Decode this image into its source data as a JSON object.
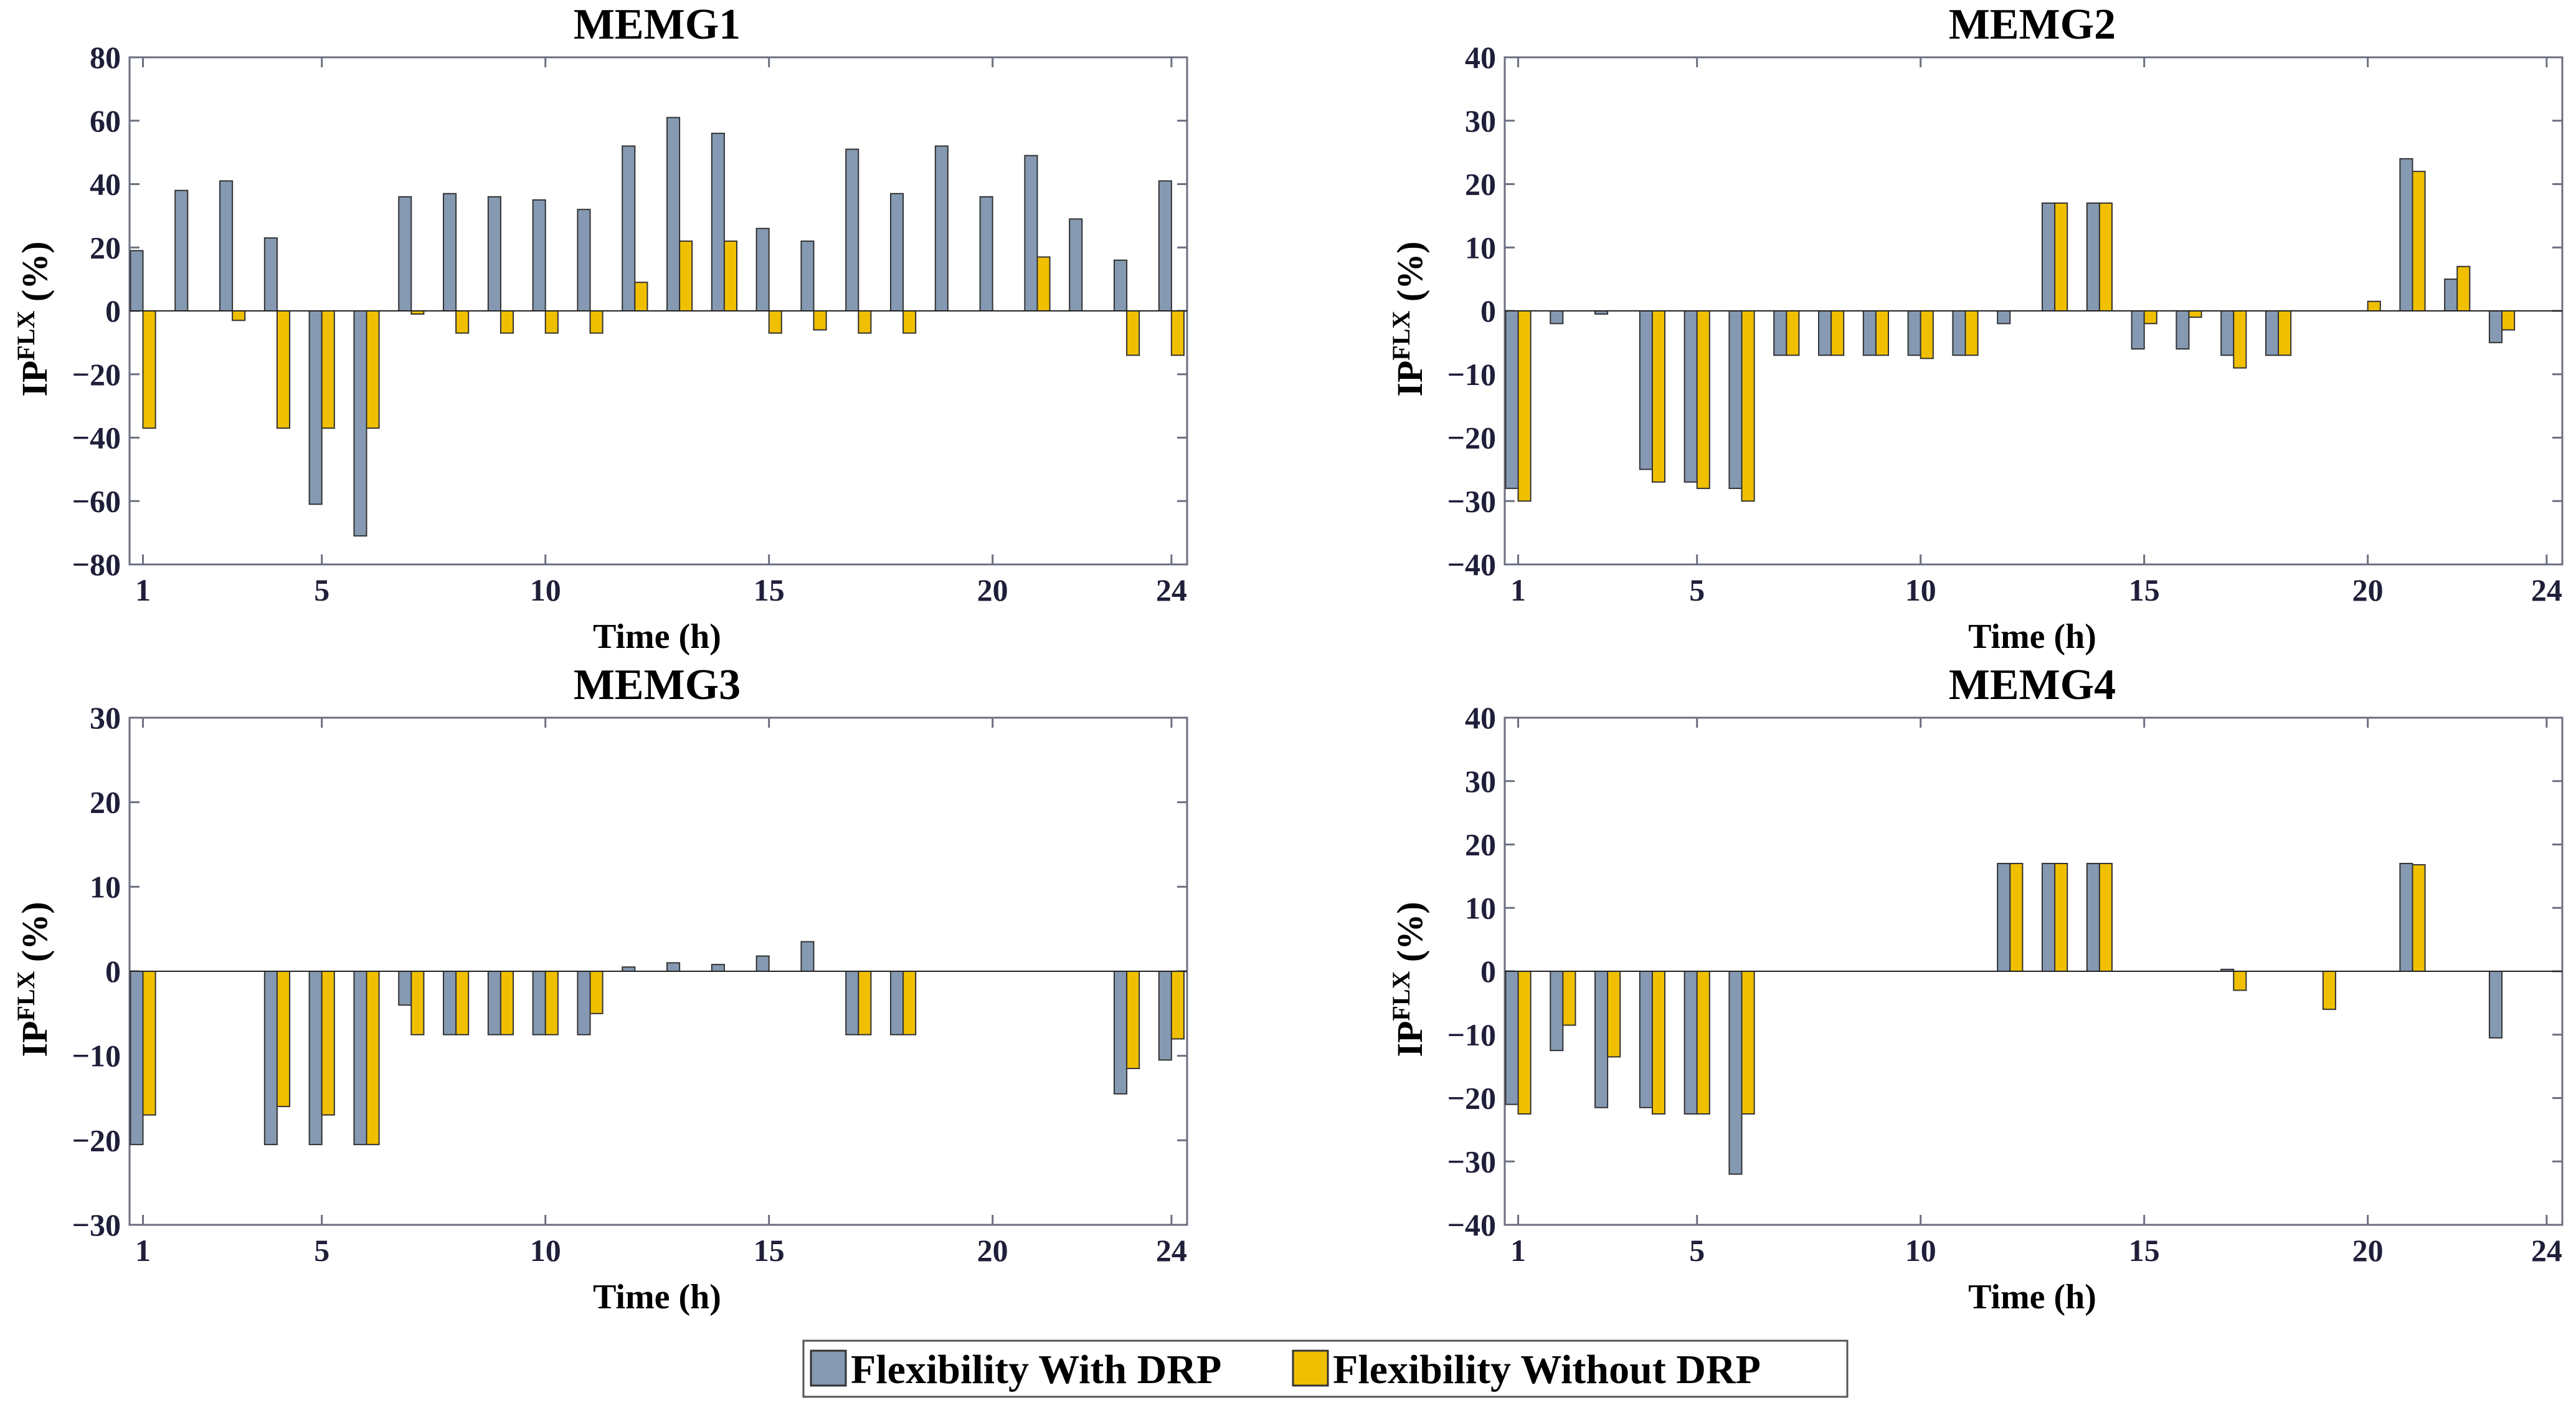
{
  "colors": {
    "with_drp": "#8599b2",
    "without_drp": "#f0c000",
    "bar_edge": "#333333",
    "axis": "#6b6f80"
  },
  "legend": {
    "with_label": "Flexibility With DRP",
    "without_label": "Flexibility Without DRP"
  },
  "chart_data": [
    {
      "type": "bar",
      "title": "MEMG1",
      "xlabel": "Time (h)",
      "ylabel_main": "IP",
      "ylabel_sup": "FLX",
      "ylabel_unit": " (%)",
      "xticks": [
        1,
        5,
        10,
        15,
        20,
        24
      ],
      "ylim": [
        -80,
        80
      ],
      "yticks": [
        -80,
        -60,
        -40,
        -20,
        0,
        20,
        40,
        60,
        80
      ],
      "categories": [
        1,
        2,
        3,
        4,
        5,
        6,
        7,
        8,
        9,
        10,
        11,
        12,
        13,
        14,
        15,
        16,
        17,
        18,
        19,
        20,
        21,
        22,
        23,
        24
      ],
      "series": [
        {
          "name": "Flexibility With DRP",
          "values": [
            19,
            38,
            41,
            23,
            -61,
            -71,
            36,
            37,
            36,
            35,
            32,
            52,
            61,
            56,
            26,
            22,
            51,
            37,
            52,
            36,
            49,
            29,
            16,
            41
          ]
        },
        {
          "name": "Flexibility Without DRP",
          "values": [
            -37,
            0,
            -3,
            -37,
            -37,
            -37,
            -1,
            -7,
            -7,
            -7,
            -7,
            9,
            22,
            22,
            -7,
            -6,
            -7,
            -7,
            0,
            0,
            17,
            0,
            -14,
            -14
          ]
        }
      ]
    },
    {
      "type": "bar",
      "title": "MEMG2",
      "xlabel": "Time (h)",
      "ylabel_main": "IP",
      "ylabel_sup": "FLX",
      "ylabel_unit": " (%)",
      "xticks": [
        1,
        5,
        10,
        15,
        20,
        24
      ],
      "ylim": [
        -40,
        40
      ],
      "yticks": [
        -40,
        -30,
        -20,
        -10,
        0,
        10,
        20,
        30,
        40
      ],
      "categories": [
        1,
        2,
        3,
        4,
        5,
        6,
        7,
        8,
        9,
        10,
        11,
        12,
        13,
        14,
        15,
        16,
        17,
        18,
        19,
        20,
        21,
        22,
        23,
        24
      ],
      "series": [
        {
          "name": "Flexibility With DRP",
          "values": [
            -28,
            -2,
            -0.5,
            -25,
            -27,
            -28,
            -7,
            -7,
            -7,
            -7,
            -7,
            -2,
            17,
            17,
            -6,
            -6,
            -7,
            -7,
            0,
            0,
            24,
            5,
            -5,
            0
          ]
        },
        {
          "name": "Flexibility Without DRP",
          "values": [
            -30,
            0,
            0,
            -27,
            -28,
            -30,
            -7,
            -7,
            -7,
            -7.5,
            -7,
            0,
            17,
            17,
            -2,
            -1,
            -9,
            -7,
            0,
            1.5,
            22,
            7,
            -3,
            0
          ]
        }
      ]
    },
    {
      "type": "bar",
      "title": "MEMG3",
      "xlabel": "Time (h)",
      "ylabel_main": "IP",
      "ylabel_sup": "FLX",
      "ylabel_unit": " (%)",
      "xticks": [
        1,
        5,
        10,
        15,
        20,
        24
      ],
      "ylim": [
        -30,
        30
      ],
      "yticks": [
        -30,
        -20,
        -10,
        0,
        10,
        20,
        30
      ],
      "categories": [
        1,
        2,
        3,
        4,
        5,
        6,
        7,
        8,
        9,
        10,
        11,
        12,
        13,
        14,
        15,
        16,
        17,
        18,
        19,
        20,
        21,
        22,
        23,
        24
      ],
      "series": [
        {
          "name": "Flexibility With DRP",
          "values": [
            -20.5,
            0,
            0,
            -20.5,
            -20.5,
            -20.5,
            -4,
            -7.5,
            -7.5,
            -7.5,
            -7.5,
            0.5,
            1,
            0.8,
            1.8,
            3.5,
            -7.5,
            -7.5,
            0,
            0,
            0,
            0,
            -14.5,
            -10.5
          ]
        },
        {
          "name": "Flexibility Without DRP",
          "values": [
            -17,
            0,
            0,
            -16,
            -17,
            -20.5,
            -7.5,
            -7.5,
            -7.5,
            -7.5,
            -5,
            0,
            0,
            0,
            0,
            0,
            -7.5,
            -7.5,
            0,
            0,
            0,
            0,
            -11.5,
            -8
          ]
        }
      ]
    },
    {
      "type": "bar",
      "title": "MEMG4",
      "xlabel": "Time (h)",
      "ylabel_main": "IP",
      "ylabel_sup": "FLX",
      "ylabel_unit": " (%)",
      "xticks": [
        1,
        5,
        10,
        15,
        20,
        24
      ],
      "ylim": [
        -40,
        40
      ],
      "yticks": [
        -40,
        -30,
        -20,
        -10,
        0,
        10,
        20,
        30,
        40
      ],
      "categories": [
        1,
        2,
        3,
        4,
        5,
        6,
        7,
        8,
        9,
        10,
        11,
        12,
        13,
        14,
        15,
        16,
        17,
        18,
        19,
        20,
        21,
        22,
        23,
        24
      ],
      "series": [
        {
          "name": "Flexibility With DRP",
          "values": [
            -21,
            -12.5,
            -21.5,
            -21.5,
            -22.5,
            -32,
            0,
            0,
            0,
            0,
            0,
            17,
            17,
            17,
            0,
            0,
            0.3,
            0,
            0,
            0,
            17,
            0,
            -10.5,
            0
          ]
        },
        {
          "name": "Flexibility Without DRP",
          "values": [
            -22.5,
            -8.5,
            -13.5,
            -22.5,
            -22.5,
            -22.5,
            0,
            0,
            0,
            0,
            0,
            17,
            17,
            17,
            0,
            0,
            -3,
            0,
            -6,
            0,
            16.8,
            0,
            0,
            0
          ]
        }
      ]
    }
  ]
}
